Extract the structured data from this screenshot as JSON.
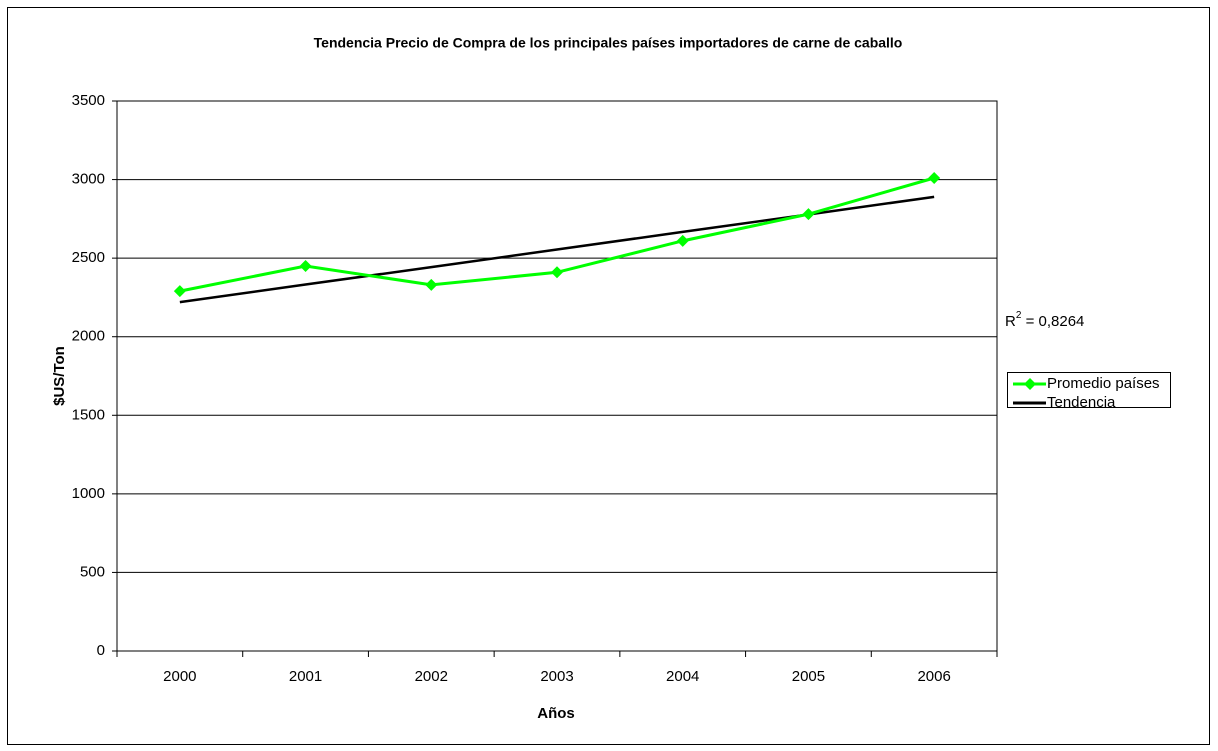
{
  "chart_data": {
    "type": "line",
    "title": "Tendencia Precio de Compra de los principales países importadores de carne de caballo",
    "y_label": "$US/Ton",
    "x_label": "Años",
    "categories": [
      "2000",
      "2001",
      "2002",
      "2003",
      "2004",
      "2005",
      "2006"
    ],
    "series": [
      {
        "name": "Promedio países",
        "color": "#00ff00",
        "values": [
          2290,
          2450,
          2330,
          2410,
          2610,
          2780,
          3010
        ],
        "marker": "diamond"
      },
      {
        "name": "Tendencia",
        "color": "#000000",
        "values": [
          2220,
          2332,
          2443,
          2555,
          2667,
          2778,
          2890
        ]
      }
    ],
    "annotation": {
      "base": "R",
      "sup": "2",
      "rest": " = 0,8264"
    },
    "ylim": [
      0,
      3500
    ],
    "yticks": [
      0,
      500,
      1000,
      1500,
      2000,
      2500,
      3000,
      3500
    ],
    "grid": true,
    "legend": "right"
  }
}
